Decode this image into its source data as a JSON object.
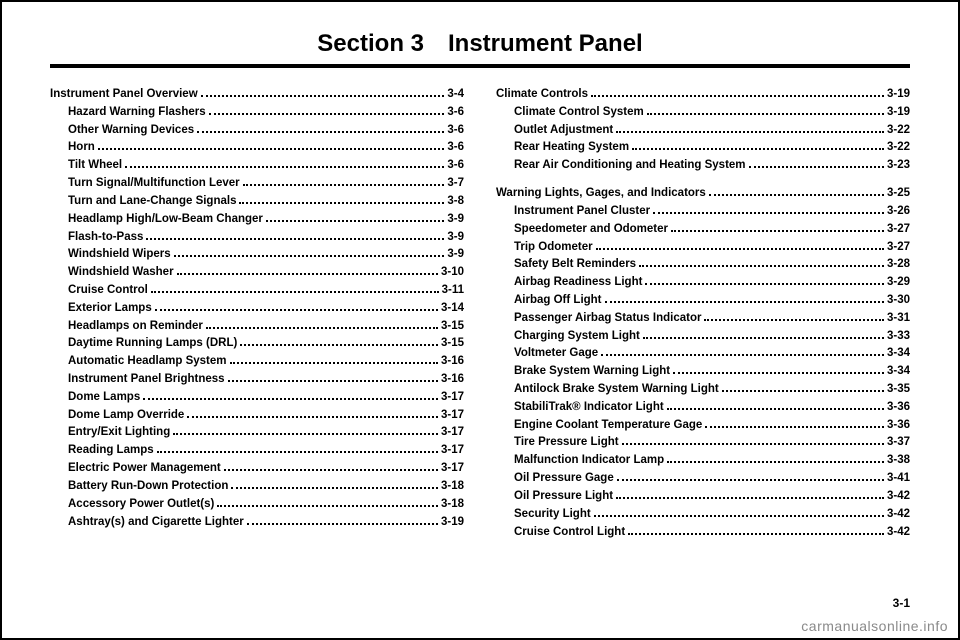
{
  "title": "Section 3 Instrument Panel",
  "columns": [
    [
      {
        "heading": {
          "label": "Instrument Panel Overview",
          "page": "3-4"
        },
        "items": [
          {
            "label": "Hazard Warning Flashers",
            "page": "3-6"
          },
          {
            "label": "Other Warning Devices",
            "page": "3-6"
          },
          {
            "label": "Horn",
            "page": "3-6"
          },
          {
            "label": "Tilt Wheel",
            "page": "3-6"
          },
          {
            "label": "Turn Signal/Multifunction Lever",
            "page": "3-7"
          },
          {
            "label": "Turn and Lane-Change Signals",
            "page": "3-8"
          },
          {
            "label": "Headlamp High/Low-Beam Changer",
            "page": "3-9"
          },
          {
            "label": "Flash-to-Pass",
            "page": "3-9"
          },
          {
            "label": "Windshield Wipers",
            "page": "3-9"
          },
          {
            "label": "Windshield Washer",
            "page": "3-10"
          },
          {
            "label": "Cruise Control",
            "page": "3-11"
          },
          {
            "label": "Exterior Lamps",
            "page": "3-14"
          },
          {
            "label": "Headlamps on Reminder",
            "page": "3-15"
          },
          {
            "label": "Daytime Running Lamps (DRL)",
            "page": "3-15"
          },
          {
            "label": "Automatic Headlamp System",
            "page": "3-16"
          },
          {
            "label": "Instrument Panel Brightness",
            "page": "3-16"
          },
          {
            "label": "Dome Lamps",
            "page": "3-17"
          },
          {
            "label": "Dome Lamp Override",
            "page": "3-17"
          },
          {
            "label": "Entry/Exit Lighting",
            "page": "3-17"
          },
          {
            "label": "Reading Lamps",
            "page": "3-17"
          },
          {
            "label": "Electric Power Management",
            "page": "3-17"
          },
          {
            "label": "Battery Run-Down Protection",
            "page": "3-18"
          },
          {
            "label": "Accessory Power Outlet(s)",
            "page": "3-18"
          },
          {
            "label": "Ashtray(s) and Cigarette Lighter",
            "page": "3-19"
          }
        ]
      }
    ],
    [
      {
        "heading": {
          "label": "Climate Controls",
          "page": "3-19"
        },
        "items": [
          {
            "label": "Climate Control System",
            "page": "3-19"
          },
          {
            "label": "Outlet Adjustment",
            "page": "3-22"
          },
          {
            "label": "Rear Heating System",
            "page": "3-22"
          },
          {
            "label": "Rear Air Conditioning and Heating System",
            "page": "3-23"
          }
        ]
      },
      {
        "heading": {
          "label": "Warning Lights, Gages, and Indicators",
          "page": "3-25"
        },
        "items": [
          {
            "label": "Instrument Panel Cluster",
            "page": "3-26"
          },
          {
            "label": "Speedometer and Odometer",
            "page": "3-27"
          },
          {
            "label": "Trip Odometer",
            "page": "3-27"
          },
          {
            "label": "Safety Belt Reminders",
            "page": "3-28"
          },
          {
            "label": "Airbag Readiness Light",
            "page": "3-29"
          },
          {
            "label": "Airbag Off Light",
            "page": "3-30"
          },
          {
            "label": "Passenger Airbag Status Indicator",
            "page": "3-31"
          },
          {
            "label": "Charging System Light",
            "page": "3-33"
          },
          {
            "label": "Voltmeter Gage",
            "page": "3-34"
          },
          {
            "label": "Brake System Warning Light",
            "page": "3-34"
          },
          {
            "label": "Antilock Brake System Warning Light",
            "page": "3-35"
          },
          {
            "label": "StabiliTrak® Indicator Light",
            "page": "3-36"
          },
          {
            "label": "Engine Coolant Temperature Gage",
            "page": "3-36"
          },
          {
            "label": "Tire Pressure Light",
            "page": "3-37"
          },
          {
            "label": "Malfunction Indicator Lamp",
            "page": "3-38"
          },
          {
            "label": "Oil Pressure Gage",
            "page": "3-41"
          },
          {
            "label": "Oil Pressure Light",
            "page": "3-42"
          },
          {
            "label": "Security Light",
            "page": "3-42"
          },
          {
            "label": "Cruise Control Light",
            "page": "3-42"
          }
        ]
      }
    ]
  ],
  "footer_page": "3-1",
  "watermark": "carmanualsonline.info"
}
